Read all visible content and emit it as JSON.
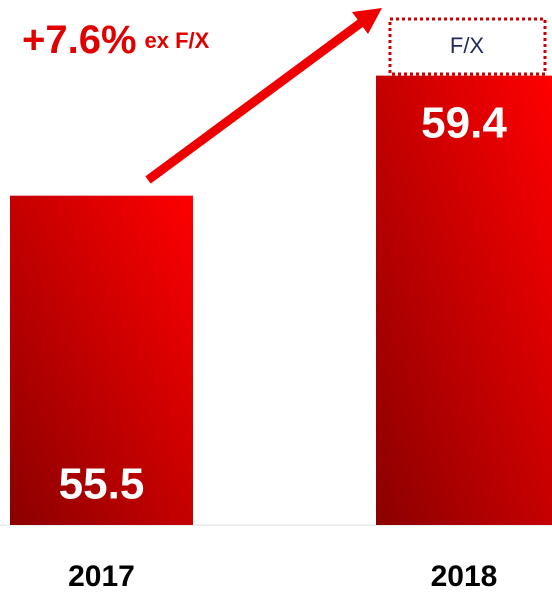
{
  "chart_data": {
    "type": "bar",
    "categories": [
      "2017",
      "2018"
    ],
    "values": [
      55.5,
      59.4
    ],
    "gradient": [
      "#8b0000",
      "#ff0000"
    ],
    "ylim": [
      44.8,
      61.5
    ],
    "annotations": {
      "growth": "+7.6%",
      "growth_note": "ex F/X",
      "fx_box": "F/X"
    }
  }
}
